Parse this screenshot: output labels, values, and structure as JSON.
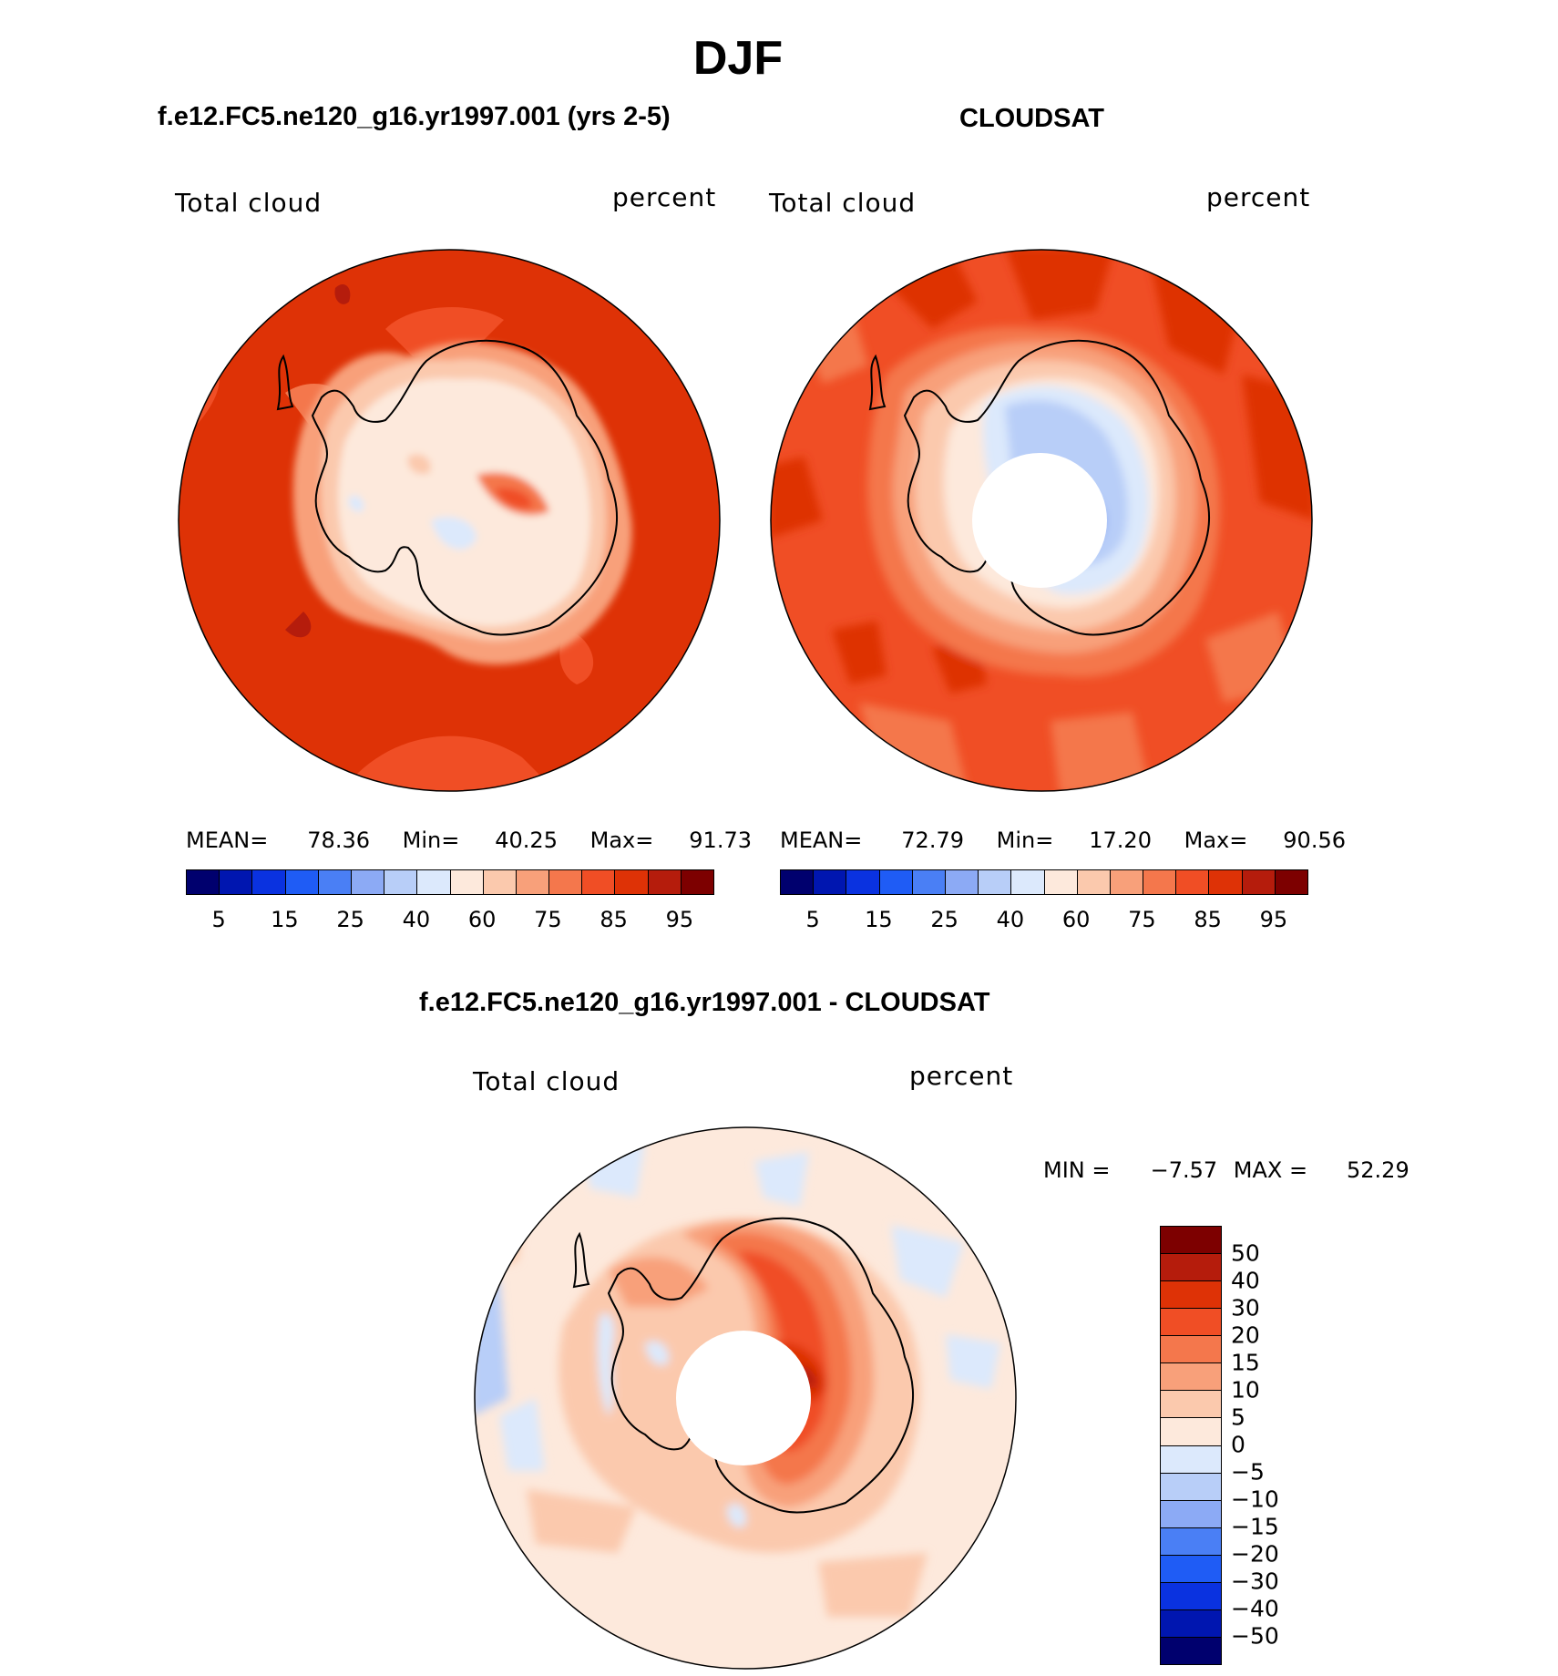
{
  "figure": {
    "title": "DJF"
  },
  "panels": {
    "model": {
      "title": "f.e12.FC5.ne120_g16.yr1997.001 (yrs 2-5)",
      "left_label": "Total cloud",
      "right_label": "percent",
      "stats": {
        "mean_label": "MEAN=",
        "mean": "78.36",
        "min_label": "Min=",
        "min": "40.25",
        "max_label": "Max=",
        "max": "91.73"
      }
    },
    "obs": {
      "title": "CLOUDSAT",
      "left_label": "Total cloud",
      "right_label": "percent",
      "stats": {
        "mean_label": "MEAN=",
        "mean": "72.79",
        "min_label": "Min=",
        "min": "17.20",
        "max_label": "Max=",
        "max": "90.56"
      }
    },
    "diff": {
      "title": "f.e12.FC5.ne120_g16.yr1997.001 - CLOUDSAT",
      "left_label": "Total cloud",
      "right_label": "percent",
      "stats": {
        "min_label": "MIN =",
        "min": "−7.57",
        "max_label": "MAX =",
        "max": "52.29"
      }
    }
  },
  "colorbars": {
    "abs_colors": [
      "#00006e",
      "#0016b0",
      "#0a32e0",
      "#1f5cf5",
      "#4a7ff5",
      "#8caaf5",
      "#b8cef8",
      "#dce9fc",
      "#fde9dc",
      "#fbc9ad",
      "#f8a07a",
      "#f4774c",
      "#f04e25",
      "#de3206",
      "#b51c0c",
      "#7d0000"
    ],
    "abs_ticks": [
      "5",
      "15",
      "25",
      "40",
      "60",
      "75",
      "85",
      "95"
    ],
    "diff_colors": [
      "#7d0000",
      "#b51c0c",
      "#de3206",
      "#f04e25",
      "#f4774c",
      "#f8a07a",
      "#fbc9ad",
      "#fde9dc",
      "#dce9fc",
      "#b8cef8",
      "#8caaf5",
      "#4a7ff5",
      "#1f5cf5",
      "#0a32e0",
      "#0016b0",
      "#00006e"
    ],
    "diff_ticks": [
      "50",
      "40",
      "30",
      "20",
      "15",
      "10",
      "5",
      "0",
      "−5",
      "−10",
      "−15",
      "−20",
      "−30",
      "−40",
      "−50"
    ]
  },
  "chart_data": {
    "type": "heatmap",
    "projection": "south polar stereographic",
    "season": "DJF",
    "variable": "Total cloud",
    "units": "percent",
    "panels": [
      {
        "name": "f.e12.FC5.ne120_g16.yr1997.001 (yrs 2-5)",
        "mean": 78.36,
        "min": 40.25,
        "max": 91.73,
        "levels": [
          5,
          10,
          15,
          20,
          25,
          30,
          40,
          50,
          60,
          70,
          75,
          80,
          85,
          90,
          95
        ]
      },
      {
        "name": "CLOUDSAT",
        "mean": 72.79,
        "min": 17.2,
        "max": 90.56,
        "levels": [
          5,
          10,
          15,
          20,
          25,
          30,
          40,
          50,
          60,
          70,
          75,
          80,
          85,
          90,
          95
        ]
      },
      {
        "name": "f.e12.FC5.ne120_g16.yr1997.001 - CLOUDSAT",
        "min": -7.57,
        "max": 52.29,
        "levels": [
          -50,
          -40,
          -30,
          -20,
          -15,
          -10,
          -5,
          0,
          5,
          10,
          15,
          20,
          30,
          40,
          50
        ]
      }
    ],
    "colors": {
      "land_outline": "#000000",
      "missing": "#ffffff"
    }
  }
}
